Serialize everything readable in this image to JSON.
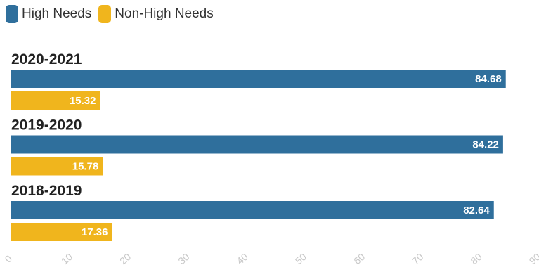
{
  "legend": {
    "items": [
      {
        "label": "High Needs",
        "color": "#2f6f9c"
      },
      {
        "label": "Non-High Needs",
        "color": "#f0b51d"
      }
    ]
  },
  "chart_data": {
    "type": "bar",
    "orientation": "horizontal",
    "categories": [
      "2020-2021",
      "2019-2020",
      "2018-2019"
    ],
    "series": [
      {
        "name": "High Needs",
        "color": "#2f6f9c",
        "values": [
          84.68,
          84.22,
          82.64
        ]
      },
      {
        "name": "Non-High Needs",
        "color": "#f0b51d",
        "values": [
          15.32,
          15.78,
          17.36
        ]
      }
    ],
    "xlim": [
      0,
      90
    ],
    "xticks": [
      "0",
      "10",
      "20",
      "30",
      "40",
      "50",
      "60",
      "70",
      "80",
      "90"
    ],
    "grid": false,
    "legend_position": "top-left"
  }
}
